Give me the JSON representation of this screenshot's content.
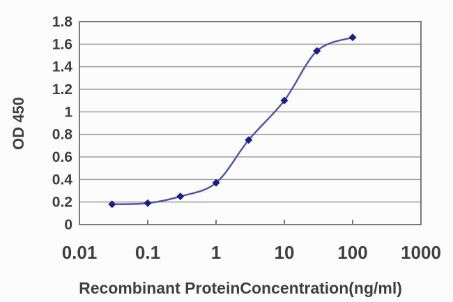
{
  "chart_data": {
    "type": "line",
    "title": "",
    "xlabel": "Recombinant ProteinConcentration(ng/ml)",
    "ylabel": "OD 450",
    "x_scale": "log",
    "xlim": [
      0.01,
      1000
    ],
    "ylim": [
      0,
      1.8
    ],
    "x": [
      0.03,
      0.1,
      0.3,
      1,
      3,
      10,
      30,
      100
    ],
    "y": [
      0.18,
      0.19,
      0.25,
      0.37,
      0.75,
      1.1,
      1.54,
      1.66
    ],
    "x_ticks": [
      0.01,
      0.1,
      1,
      10,
      100,
      1000
    ],
    "x_tick_labels": [
      "0.01",
      "0.1",
      "1",
      "10",
      "100",
      "1000"
    ],
    "x_inner_ticks": [
      0.1,
      1,
      10,
      100
    ],
    "y_ticks": [
      0,
      0.2,
      0.4,
      0.6,
      0.8,
      1,
      1.2,
      1.4,
      1.6,
      1.8
    ],
    "y_tick_labels": [
      "0",
      "0.2",
      "0.4",
      "0.6",
      "0.8",
      "1",
      "1.2",
      "1.4",
      "1.6",
      "1.8"
    ],
    "grid": "horizontal",
    "legend": "none",
    "marker": "diamond",
    "colors": {
      "line": "#5355a6",
      "marker": "#1c1c8a",
      "grid": "#9c9c9c",
      "frame": "#787878",
      "text": "#3f3f3f",
      "background": "#fcfcfc"
    }
  }
}
